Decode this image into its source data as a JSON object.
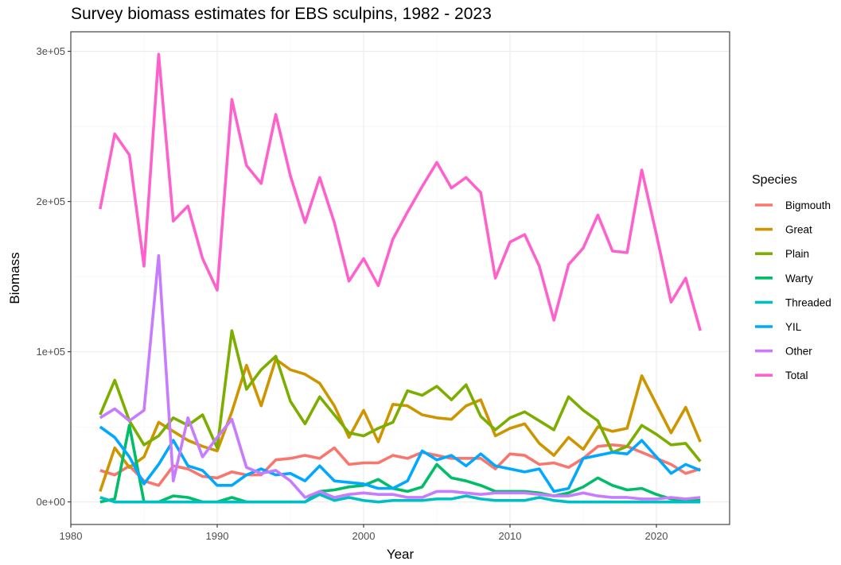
{
  "chart_data": {
    "type": "line",
    "title": "Survey biomass estimates for EBS sculpins, 1982 - 2023",
    "xlabel": "Year",
    "ylabel": "Biomass",
    "xlim": [
      1980,
      2025
    ],
    "ylim": [
      -15000,
      313000
    ],
    "x_ticks": [
      1980,
      1990,
      2000,
      2010,
      2020
    ],
    "x_tick_labels": [
      "1980",
      "1990",
      "2000",
      "2010",
      "2020"
    ],
    "y_ticks": [
      0,
      100000,
      200000,
      300000
    ],
    "y_tick_labels": [
      "0e+00",
      "1e+05",
      "2e+05",
      "3e+05"
    ],
    "grid": true,
    "legend": {
      "title": "Species",
      "position": "right"
    },
    "x": [
      1982,
      1983,
      1984,
      1985,
      1986,
      1987,
      1988,
      1989,
      1990,
      1991,
      1992,
      1993,
      1994,
      1995,
      1996,
      1997,
      1998,
      1999,
      2000,
      2001,
      2002,
      2003,
      2004,
      2005,
      2006,
      2007,
      2008,
      2009,
      2010,
      2011,
      2012,
      2013,
      2014,
      2015,
      2016,
      2017,
      2018,
      2019,
      2020,
      2021,
      2022,
      2023
    ],
    "series": [
      {
        "name": "Bigmouth",
        "color": "#F8766D",
        "values": [
          21000,
          18000,
          24000,
          14000,
          11000,
          24000,
          22000,
          17000,
          16000,
          20000,
          18000,
          18000,
          28000,
          29000,
          31000,
          29000,
          36000,
          25000,
          26000,
          26000,
          31000,
          29000,
          33000,
          31000,
          29000,
          29000,
          29000,
          22000,
          32000,
          31000,
          25000,
          26000,
          23000,
          29000,
          37000,
          38000,
          37000,
          33000,
          29000,
          25000,
          19000,
          22000
        ]
      },
      {
        "name": "Great",
        "color": "#CD9600",
        "values": [
          7000,
          36000,
          23000,
          30000,
          53000,
          47000,
          41000,
          37000,
          34000,
          60000,
          91000,
          64000,
          95000,
          88000,
          85000,
          79000,
          64000,
          43000,
          61000,
          40000,
          65000,
          64000,
          58000,
          56000,
          55000,
          64000,
          68000,
          44000,
          49000,
          52000,
          39000,
          31000,
          43000,
          35000,
          50000,
          47000,
          49000,
          84000,
          65000,
          46000,
          63000,
          40000
        ]
      },
      {
        "name": "Plain",
        "color": "#7CAE00",
        "values": [
          58000,
          81000,
          54000,
          38000,
          44000,
          56000,
          51000,
          58000,
          36000,
          114000,
          75000,
          88000,
          97000,
          67000,
          52000,
          70000,
          58000,
          46000,
          44000,
          49000,
          53000,
          74000,
          71000,
          77000,
          68000,
          78000,
          57000,
          48000,
          56000,
          60000,
          54000,
          48000,
          70000,
          61000,
          54000,
          33000,
          37000,
          51000,
          45000,
          38000,
          39000,
          27000
        ]
      },
      {
        "name": "Warty",
        "color": "#00BE67",
        "values": [
          0,
          2000,
          51000,
          0,
          0,
          4000,
          3000,
          0,
          0,
          3000,
          0,
          0,
          0,
          0,
          0,
          7000,
          8000,
          10000,
          11000,
          15000,
          9000,
          7000,
          10000,
          25000,
          16000,
          14000,
          11000,
          7000,
          7000,
          7000,
          6000,
          4000,
          6000,
          10000,
          16000,
          11000,
          8000,
          9000,
          5000,
          2000,
          1000,
          1000
        ]
      },
      {
        "name": "Threaded",
        "color": "#00BFC4",
        "values": [
          3000,
          0,
          0,
          0,
          0,
          0,
          0,
          0,
          0,
          0,
          0,
          0,
          0,
          0,
          0,
          5000,
          1000,
          3000,
          1000,
          0,
          1000,
          1000,
          1000,
          2000,
          2000,
          4000,
          2000,
          1000,
          1000,
          1000,
          3000,
          1000,
          0,
          0,
          0,
          0,
          0,
          0,
          0,
          0,
          0,
          0
        ]
      },
      {
        "name": "YIL",
        "color": "#00A9FF",
        "values": [
          50000,
          43000,
          30000,
          12000,
          25000,
          41000,
          24000,
          21000,
          11000,
          11000,
          18000,
          22000,
          18000,
          19000,
          14000,
          24000,
          14000,
          13000,
          12000,
          9000,
          9000,
          14000,
          34000,
          28000,
          31000,
          24000,
          32000,
          24000,
          22000,
          20000,
          22000,
          7000,
          9000,
          29000,
          31000,
          33000,
          32000,
          41000,
          30000,
          19000,
          25000,
          21000
        ]
      },
      {
        "name": "Other",
        "color": "#C77CFF",
        "values": [
          56000,
          62000,
          54000,
          61000,
          164000,
          14000,
          56000,
          30000,
          43000,
          55000,
          23000,
          19000,
          21000,
          14000,
          3000,
          7000,
          3000,
          5000,
          6000,
          5000,
          5000,
          3000,
          3000,
          7000,
          7000,
          6000,
          5000,
          6000,
          6000,
          6000,
          5000,
          4000,
          4000,
          6000,
          4000,
          3000,
          3000,
          2000,
          2000,
          3000,
          2000,
          3000
        ]
      },
      {
        "name": "Total",
        "color": "#FF61CC",
        "values": [
          195000,
          245000,
          231000,
          157000,
          298000,
          187000,
          197000,
          162000,
          141000,
          268000,
          224000,
          212000,
          258000,
          217000,
          186000,
          216000,
          186000,
          147000,
          162000,
          144000,
          175000,
          193000,
          210000,
          226000,
          209000,
          216000,
          206000,
          149000,
          173000,
          178000,
          157000,
          121000,
          158000,
          169000,
          191000,
          167000,
          166000,
          221000,
          178000,
          133000,
          149000,
          114000
        ]
      }
    ]
  }
}
